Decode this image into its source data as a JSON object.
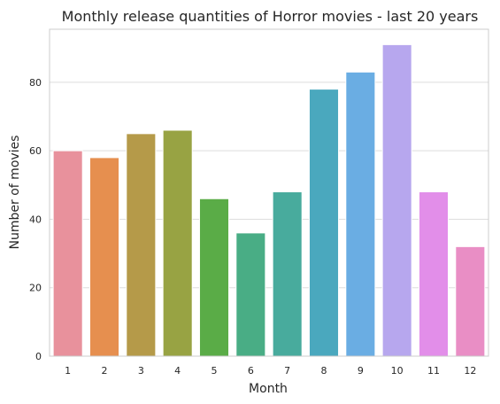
{
  "chart_data": {
    "type": "bar",
    "title": "Monthly release quantities of Horror movies - last 20 years",
    "xlabel": "Month",
    "ylabel": "Number of movies",
    "categories": [
      "1",
      "2",
      "3",
      "4",
      "5",
      "6",
      "7",
      "8",
      "9",
      "10",
      "11",
      "12"
    ],
    "values": [
      60,
      58,
      65,
      66,
      46,
      36,
      48,
      78,
      83,
      91,
      48,
      32
    ],
    "colors": [
      "#e8919c",
      "#e68f4f",
      "#b59a49",
      "#98a343",
      "#5aac47",
      "#49ad85",
      "#48ab9d",
      "#4aa8be",
      "#6aade3",
      "#b7a7ee",
      "#e28ee9",
      "#e98ec5"
    ],
    "yticks": [
      0,
      20,
      40,
      60,
      80
    ],
    "ylim": [
      0,
      95.5
    ],
    "grid": "horizontal",
    "style": {
      "frame": "#cccccc",
      "grid": "#dedede",
      "text": "#262626"
    }
  }
}
